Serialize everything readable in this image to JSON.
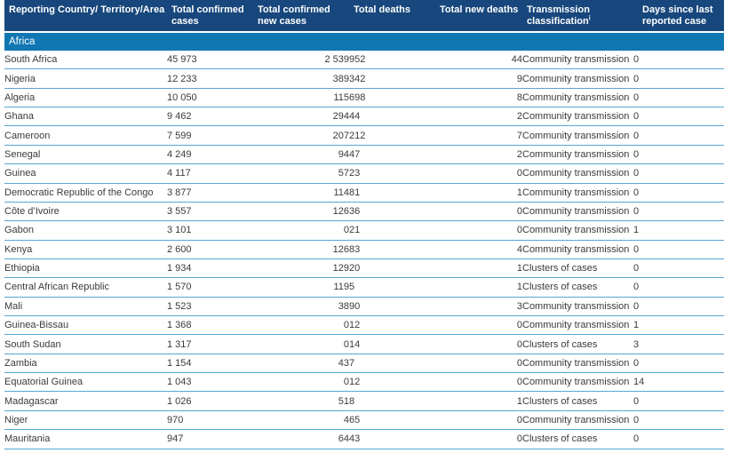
{
  "colors": {
    "header_background": "#17477C",
    "section_background": "#1177B3",
    "row_separator": "#57A6D6",
    "header_text": "#FFFFFF",
    "body_text": "#3A3A3A"
  },
  "table": {
    "columns": [
      {
        "label": "Reporting Country/ Territory/Area"
      },
      {
        "label": "Total confirmed cases"
      },
      {
        "label": "Total confirmed new cases"
      },
      {
        "label": "Total deaths"
      },
      {
        "label": "Total new deaths"
      },
      {
        "label": "Transmission classification",
        "sup": "i"
      },
      {
        "label": "Days since last reported case"
      }
    ],
    "column_keys": [
      "country",
      "total-confirmed-cases",
      "total-confirmed-new-cases",
      "total-deaths",
      "total-new-deaths",
      "transmission-classification",
      "days-since-last-reported-case"
    ],
    "section": "Africa",
    "rows": [
      [
        "South Africa",
        "45 973",
        "2 539",
        "952",
        "44",
        "Community transmission",
        "0"
      ],
      [
        "Nigeria",
        "12 233",
        "389",
        "342",
        "9",
        "Community transmission",
        "0"
      ],
      [
        "Algeria",
        "10 050",
        "115",
        "698",
        "8",
        "Community transmission",
        "0"
      ],
      [
        "Ghana",
        "9 462",
        "294",
        "44",
        "2",
        "Community transmission",
        "0"
      ],
      [
        "Cameroon",
        "7 599",
        "207",
        "212",
        "7",
        "Community transmission",
        "0"
      ],
      [
        "Senegal",
        "4 249",
        "94",
        "47",
        "2",
        "Community transmission",
        "0"
      ],
      [
        "Guinea",
        "4 117",
        "57",
        "23",
        "0",
        "Community transmission",
        "0"
      ],
      [
        "Democratic Republic of the Congo",
        "3 877",
        "114",
        "81",
        "1",
        "Community transmission",
        "0"
      ],
      [
        "Côte d’Ivoire",
        "3 557",
        "126",
        "36",
        "0",
        "Community transmission",
        "0"
      ],
      [
        "Gabon",
        "3 101",
        "0",
        "21",
        "0",
        "Community transmission",
        "1"
      ],
      [
        "Kenya",
        "2 600",
        "126",
        "83",
        "4",
        "Community transmission",
        "0"
      ],
      [
        "Ethiopia",
        "1 934",
        "129",
        "20",
        "1",
        "Clusters of cases",
        "0"
      ],
      [
        "Central African Republic",
        "1 570",
        "119",
        "5",
        "1",
        "Clusters of cases",
        "0"
      ],
      [
        "Mali",
        "1 523",
        "38",
        "90",
        "3",
        "Community transmission",
        "0"
      ],
      [
        "Guinea-Bissau",
        "1 368",
        "0",
        "12",
        "0",
        "Community transmission",
        "1"
      ],
      [
        "South Sudan",
        "1 317",
        "0",
        "14",
        "0",
        "Clusters of cases",
        "3"
      ],
      [
        "Zambia",
        "1 154",
        "43",
        "7",
        "0",
        "Community transmission",
        "0"
      ],
      [
        "Equatorial Guinea",
        "1 043",
        "0",
        "12",
        "0",
        "Community transmission",
        "14"
      ],
      [
        "Madagascar",
        "1 026",
        "51",
        "8",
        "1",
        "Clusters of cases",
        "0"
      ],
      [
        "Niger",
        "970",
        "4",
        "65",
        "0",
        "Community transmission",
        "0"
      ],
      [
        "Mauritania",
        "947",
        "64",
        "43",
        "0",
        "Clusters of cases",
        "0"
      ]
    ]
  }
}
